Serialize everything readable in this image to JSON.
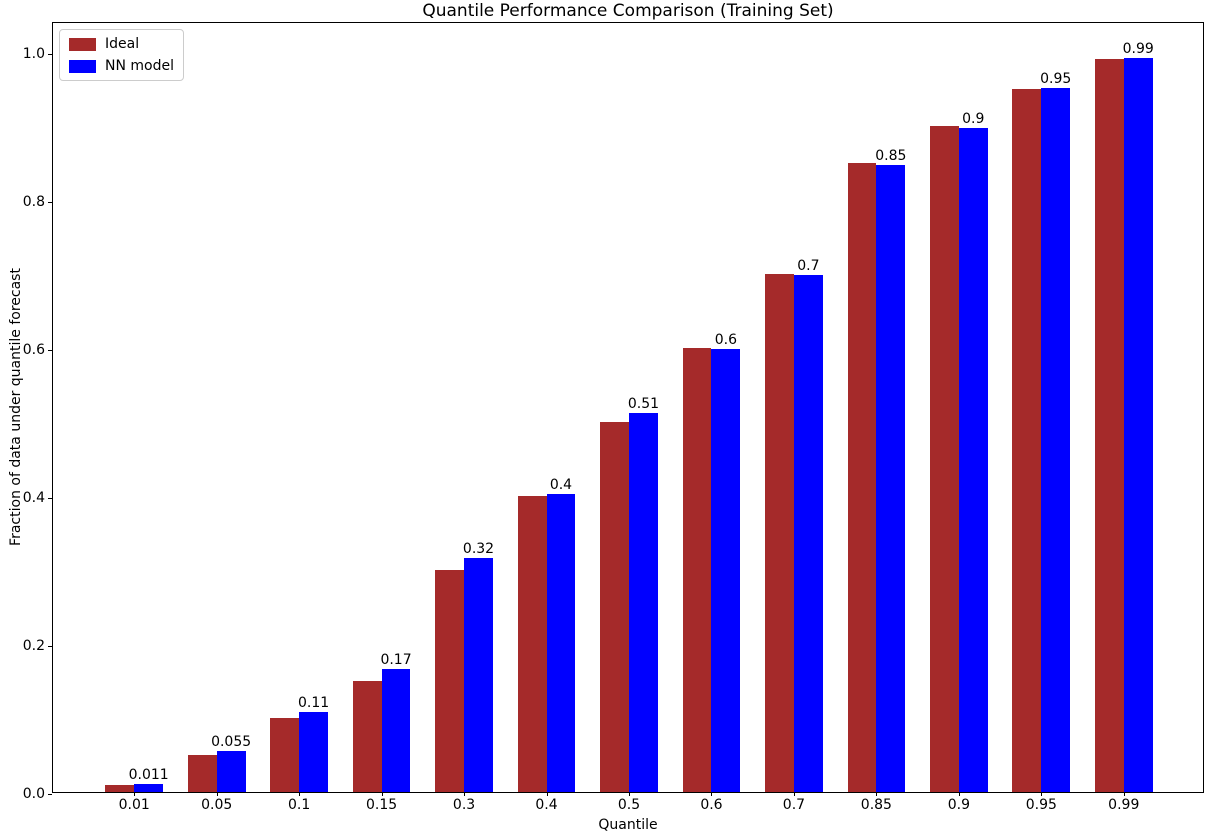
{
  "figure": {
    "background": "#ffffff",
    "text_color": "#000000",
    "spine_color": "#000000"
  },
  "chart_data": {
    "type": "bar",
    "title": "Quantile Performance Comparison (Training Set)",
    "xlabel": "Quantile",
    "ylabel": "Fraction of data under quantile forecast",
    "categories": [
      "0.01",
      "0.05",
      "0.1",
      "0.15",
      "0.3",
      "0.4",
      "0.5",
      "0.6",
      "0.7",
      "0.85",
      "0.9",
      "0.95",
      "0.99"
    ],
    "series": [
      {
        "name": "Ideal",
        "color": "#a52a2a",
        "values": [
          0.01,
          0.05,
          0.1,
          0.15,
          0.3,
          0.4,
          0.5,
          0.6,
          0.7,
          0.85,
          0.9,
          0.95,
          0.99
        ]
      },
      {
        "name": "NN model",
        "color": "#0000ff",
        "values": [
          0.011,
          0.055,
          0.108,
          0.166,
          0.316,
          0.403,
          0.512,
          0.598,
          0.698,
          0.847,
          0.897,
          0.951,
          0.992
        ],
        "labels": [
          "0.011",
          "0.055",
          "0.11",
          "0.17",
          "0.32",
          "0.4",
          "0.51",
          "0.6",
          "0.7",
          "0.85",
          "0.9",
          "0.95",
          "0.99"
        ]
      }
    ],
    "yticks": [
      0.0,
      0.2,
      0.4,
      0.6,
      0.8,
      1.0
    ],
    "ytick_labels": [
      "0.0",
      "0.2",
      "0.4",
      "0.6",
      "0.8",
      "1.0"
    ],
    "ylim": [
      0,
      1.0419
    ],
    "grid": false,
    "legend_position": "upper left"
  }
}
